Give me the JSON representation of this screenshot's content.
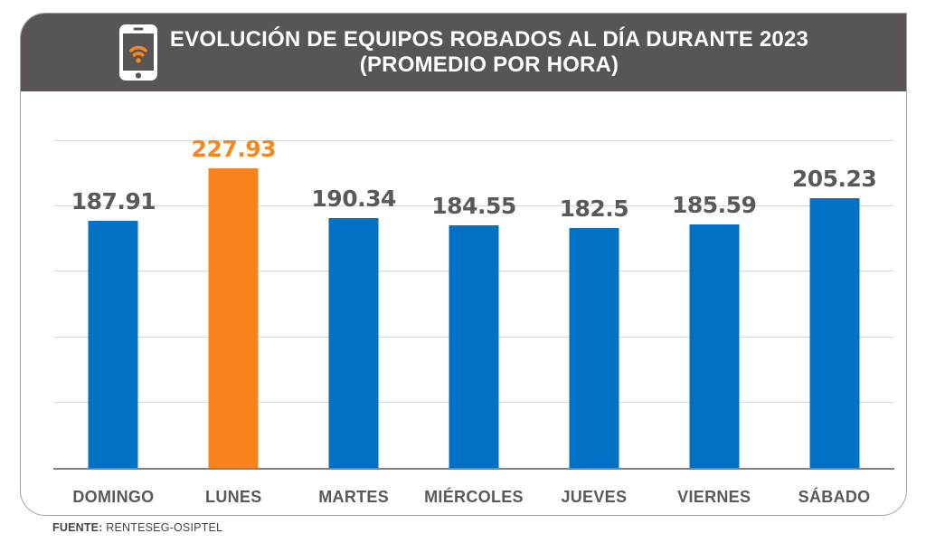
{
  "header": {
    "title_line1": "EVOLUCIÓN DE EQUIPOS ROBADOS AL DÍA DURANTE 2023",
    "title_line2": "(PROMEDIO POR HORA)",
    "icon": "smartphone-wifi-icon"
  },
  "footer": {
    "source_label": "FUENTE:",
    "source_value": "RENTESEG-OSIPTEL"
  },
  "colors": {
    "banner_bg": "#595456",
    "bar_blue": "#0071C4",
    "bar_orange": "#F8821E",
    "value_gray": "#58595B",
    "value_orange": "#F6861F",
    "day_label": "#595959",
    "gridline": "#D9D9D9",
    "axis_line": "#808080",
    "card_border": "#A3A3A3"
  },
  "chart_data": {
    "type": "bar",
    "title": "EVOLUCIÓN DE EQUIPOS ROBADOS AL DÍA DURANTE 2023 (PROMEDIO POR HORA)",
    "categories": [
      "DOMINGO",
      "LUNES",
      "MARTES",
      "MIÉRCOLES",
      "JUEVES",
      "VIERNES",
      "SÁBADO"
    ],
    "values": [
      187.91,
      227.93,
      190.34,
      184.55,
      182.5,
      185.59,
      205.23
    ],
    "value_labels": [
      "187.91",
      "227.93",
      "190.34",
      "184.55",
      "182.5",
      "185.59",
      "205.23"
    ],
    "highlight_index": 1,
    "highlight_category": "LUNES",
    "xlabel": "",
    "ylabel": "",
    "ylim": [
      0,
      250
    ],
    "gridline_step": 50,
    "grid": true,
    "legend": false,
    "source": "FUENTE: RENTESEG-OSIPTEL"
  }
}
